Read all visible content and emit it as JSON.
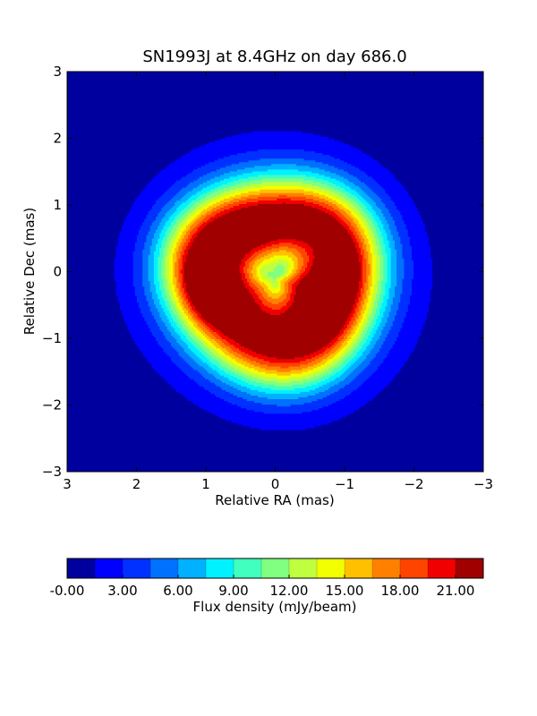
{
  "chart_data": {
    "type": "heatmap",
    "subtype": "filled-contour",
    "title": "SN1993J at 8.4GHz on day 686.0",
    "xlabel": "Relative RA (mas)",
    "ylabel": "Relative Dec (mas)",
    "xlim": [
      3,
      -3
    ],
    "ylim": [
      -3,
      3
    ],
    "x_ticks": [
      "3",
      "2",
      "1",
      "0",
      "−1",
      "−2",
      "−3"
    ],
    "x_tick_values": [
      3,
      2,
      1,
      0,
      -1,
      -2,
      -3
    ],
    "y_ticks": [
      "−3",
      "−2",
      "−1",
      "0",
      "1",
      "2",
      "3"
    ],
    "y_tick_values": [
      -3,
      -2,
      -1,
      0,
      1,
      2,
      3
    ],
    "grid": false,
    "colormap": "jet",
    "contour_levels": [
      0.0,
      1.5,
      3.0,
      4.5,
      6.0,
      7.5,
      9.0,
      10.5,
      12.0,
      13.5,
      15.0,
      16.5,
      18.0,
      19.5,
      21.0,
      22.5
    ],
    "contour_colors": [
      "#00009f",
      "#0000ff",
      "#0031ff",
      "#0070ff",
      "#00b1ff",
      "#00f1ff",
      "#40ffbf",
      "#80ff80",
      "#bfff40",
      "#f1ff00",
      "#ffc000",
      "#ff8000",
      "#ff4400",
      "#f00000",
      "#a00000"
    ],
    "structure": {
      "shell_center": [
        0.0,
        -0.1
      ],
      "shell_outer_radius_mas": 2.2,
      "peak_value": 22.5,
      "peak_position": [
        0.9,
        -0.2
      ],
      "secondary_peak_value": 20.0,
      "secondary_peak_position": [
        -0.95,
        0.0
      ],
      "central_minimum_value": 11.5,
      "central_minimum_position": [
        0.0,
        0.1
      ]
    },
    "colorbar": {
      "label": "Flux density (mJy/beam)",
      "orientation": "horizontal",
      "position": "bottom",
      "tick_labels": [
        "-0.00",
        "3.00",
        "6.00",
        "9.00",
        "12.00",
        "15.00",
        "18.00",
        "21.00"
      ],
      "tick_values": [
        0,
        3,
        6,
        9,
        12,
        15,
        18,
        21
      ],
      "range": [
        0,
        22.5
      ]
    }
  }
}
